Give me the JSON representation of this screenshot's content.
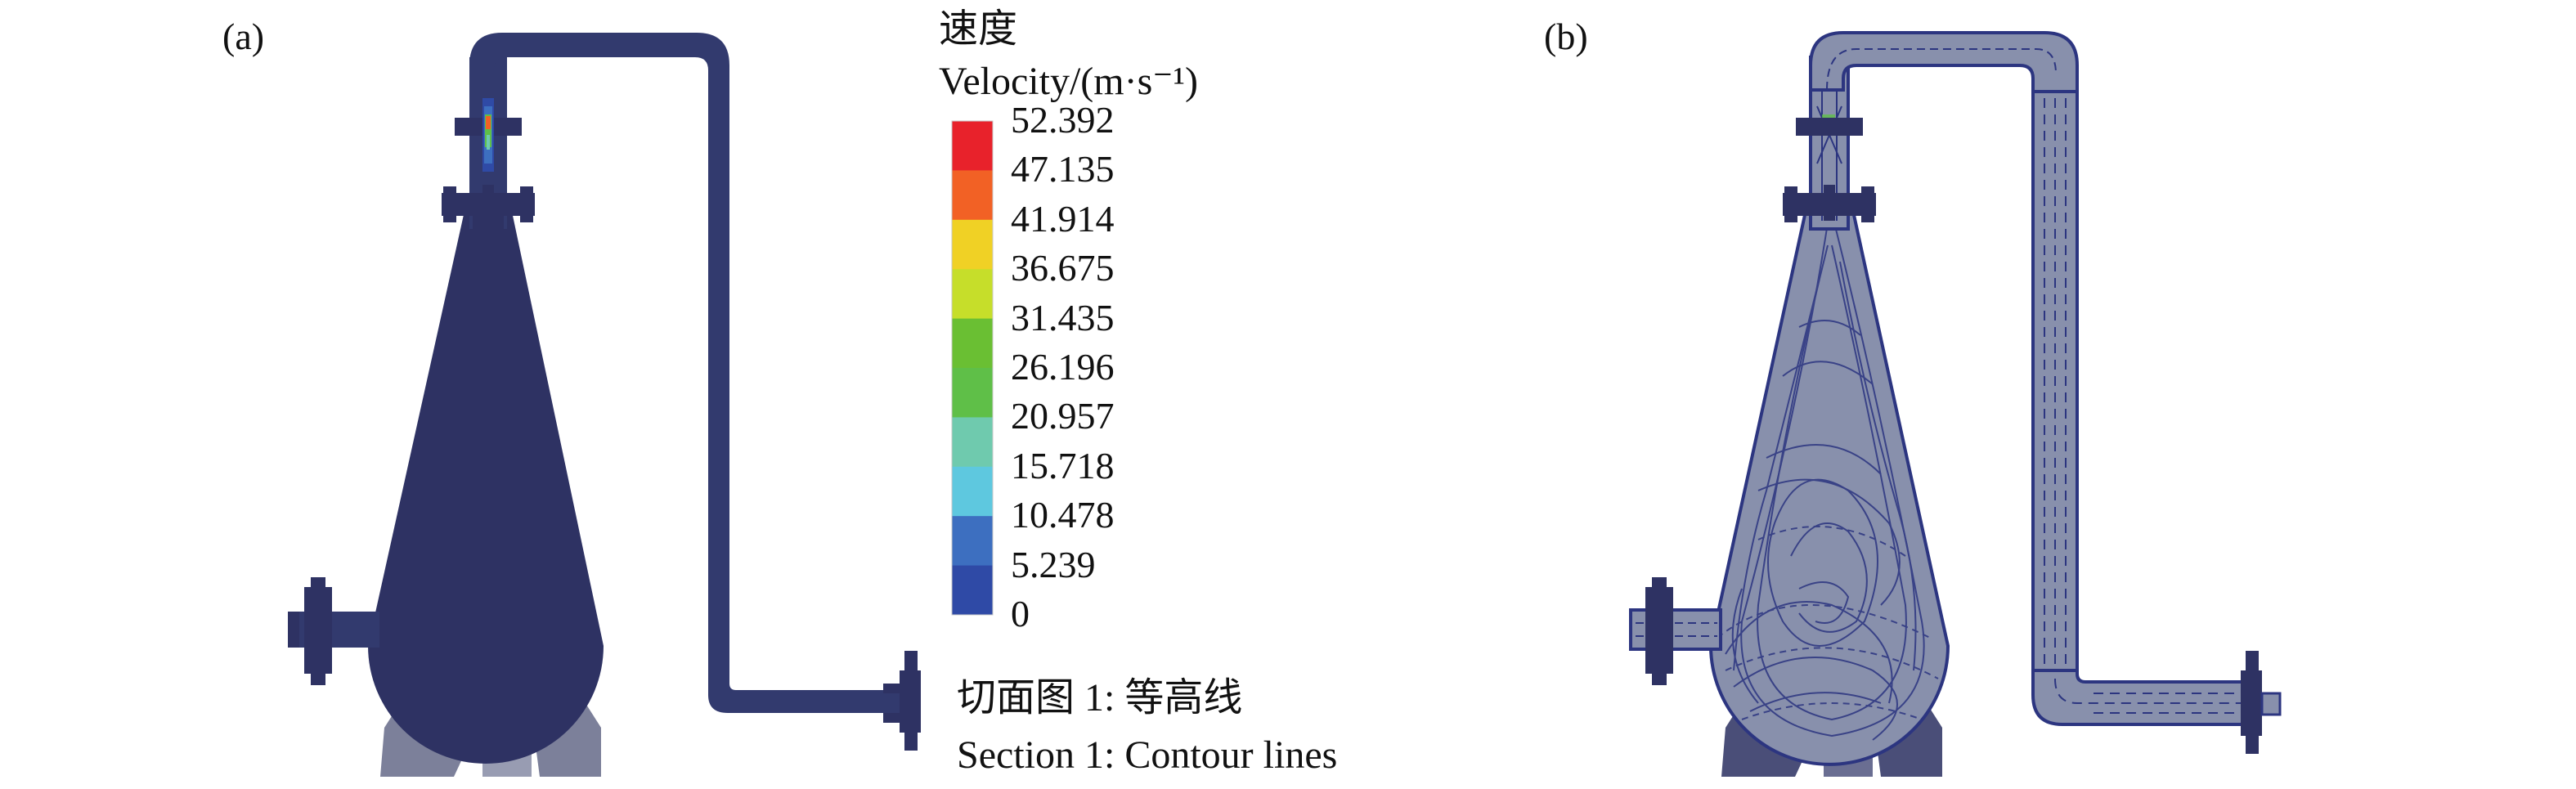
{
  "panels": [
    {
      "label": "(a)"
    },
    {
      "label": "(b)"
    }
  ],
  "legend": {
    "title_cn": "速度",
    "title_en": "Velocity/(m·s⁻¹)",
    "levels": [
      {
        "value": "52.392",
        "color": "#e8222b"
      },
      {
        "value": "47.135",
        "color": "#f26125"
      },
      {
        "value": "41.914",
        "color": "#f0d125"
      },
      {
        "value": "36.675",
        "color": "#c6de2a"
      },
      {
        "value": "31.435",
        "color": "#6abf33"
      },
      {
        "value": "26.196",
        "color": "#5fbf48"
      },
      {
        "value": "20.957",
        "color": "#6fcaae"
      },
      {
        "value": "15.718",
        "color": "#5ec8df"
      },
      {
        "value": "10.478",
        "color": "#3d6fc0"
      },
      {
        "value": "5.239",
        "color": "#2f4aa6"
      },
      {
        "value": "0",
        "color": ""
      }
    ]
  },
  "caption": {
    "line_cn": "切面图 1: 等高线",
    "line_en": "Section 1: Contour lines"
  },
  "colors": {
    "vessel_fill": "#2e3263",
    "vessel_dark": "#262a57",
    "pipe_fill": "#323a6e",
    "streamline_bg": "#8890ac",
    "streamline_line": "#2c3580",
    "support_fill": "#7c809a"
  }
}
